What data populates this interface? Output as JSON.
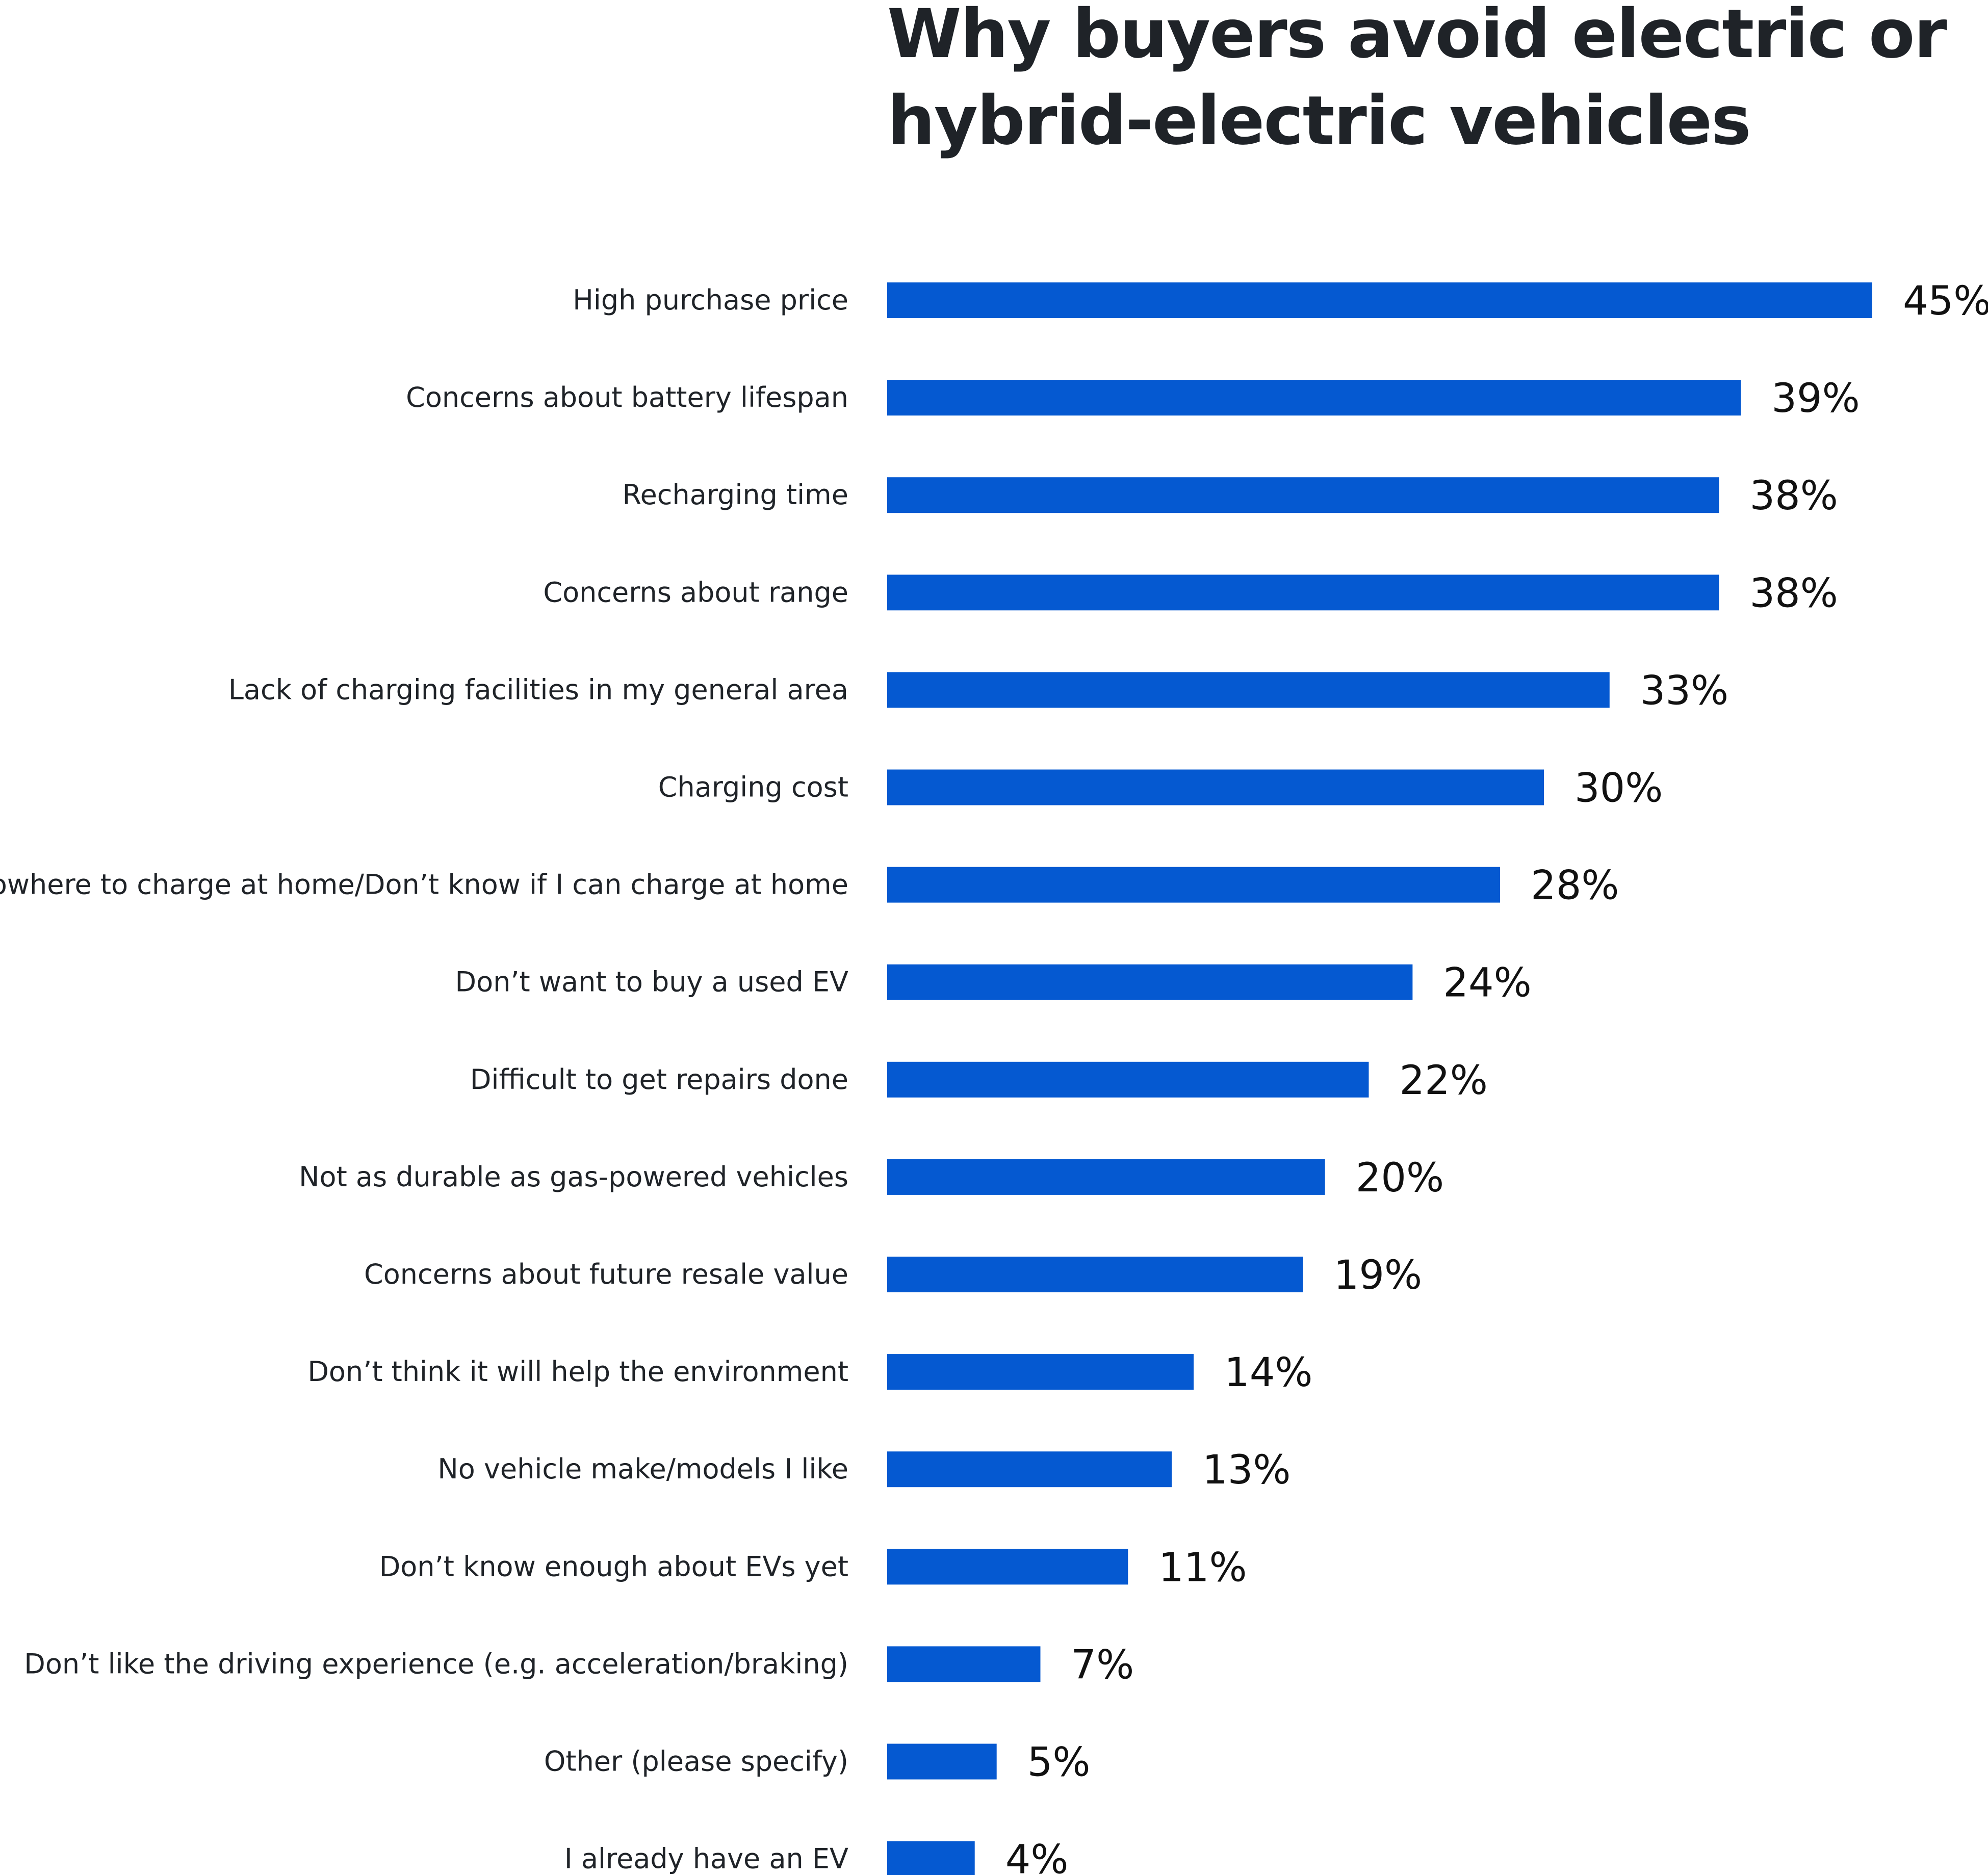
{
  "chart_data": {
    "type": "bar",
    "orientation": "horizontal",
    "title": "Why buyers avoid electric or hybrid-electric vehicles",
    "categories": [
      "High purchase price",
      "Concerns about battery lifespan",
      "Recharging time",
      "Concerns about range",
      "Lack of charging facilities in my general area",
      "Charging cost",
      "Nowhere to charge at home/Don’t know if I can charge at home",
      "Don’t want to buy a used EV",
      "Difficult to get repairs done",
      "Not as durable as gas-powered vehicles",
      "Concerns about future resale value",
      "Don’t think it will help the environment",
      "No vehicle make/models I like",
      "Don’t know enough about EVs yet",
      "Don’t like the driving experience (e.g. acceleration/braking)",
      "Other (please specify)",
      "I already have an EV"
    ],
    "values": [
      45,
      39,
      38,
      38,
      33,
      30,
      28,
      24,
      22,
      20,
      19,
      14,
      13,
      11,
      7,
      5,
      4
    ],
    "value_labels": [
      "45%",
      "39%",
      "38%",
      "38%",
      "33%",
      "30%",
      "28%",
      "24%",
      "22%",
      "20%",
      "19%",
      "14%",
      "13%",
      "11%",
      "7%",
      "5%",
      "4%"
    ],
    "xlim": [
      0,
      45
    ],
    "grid": false,
    "legend": "none",
    "bar_color": "#0559d1"
  }
}
